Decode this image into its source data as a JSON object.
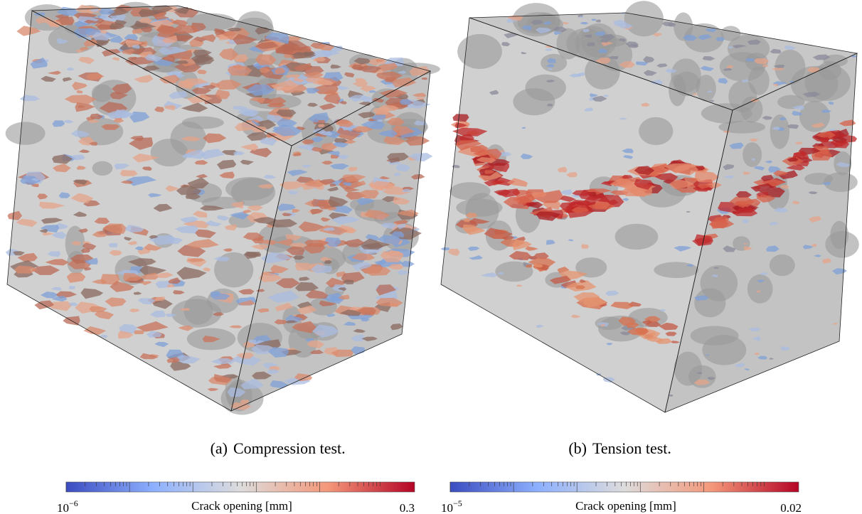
{
  "panels": [
    {
      "tag": "(a)",
      "caption": "Compression test.",
      "colorbar": {
        "label": "Crack opening [mm]",
        "min": {
          "base": "10",
          "exponent": "−6"
        },
        "max": "0.3"
      }
    },
    {
      "tag": "(b)",
      "caption": "Tension test.",
      "colorbar": {
        "label": "Crack opening [mm]",
        "min": {
          "base": "10",
          "exponent": "−5"
        },
        "max": "0.02"
      }
    }
  ]
}
